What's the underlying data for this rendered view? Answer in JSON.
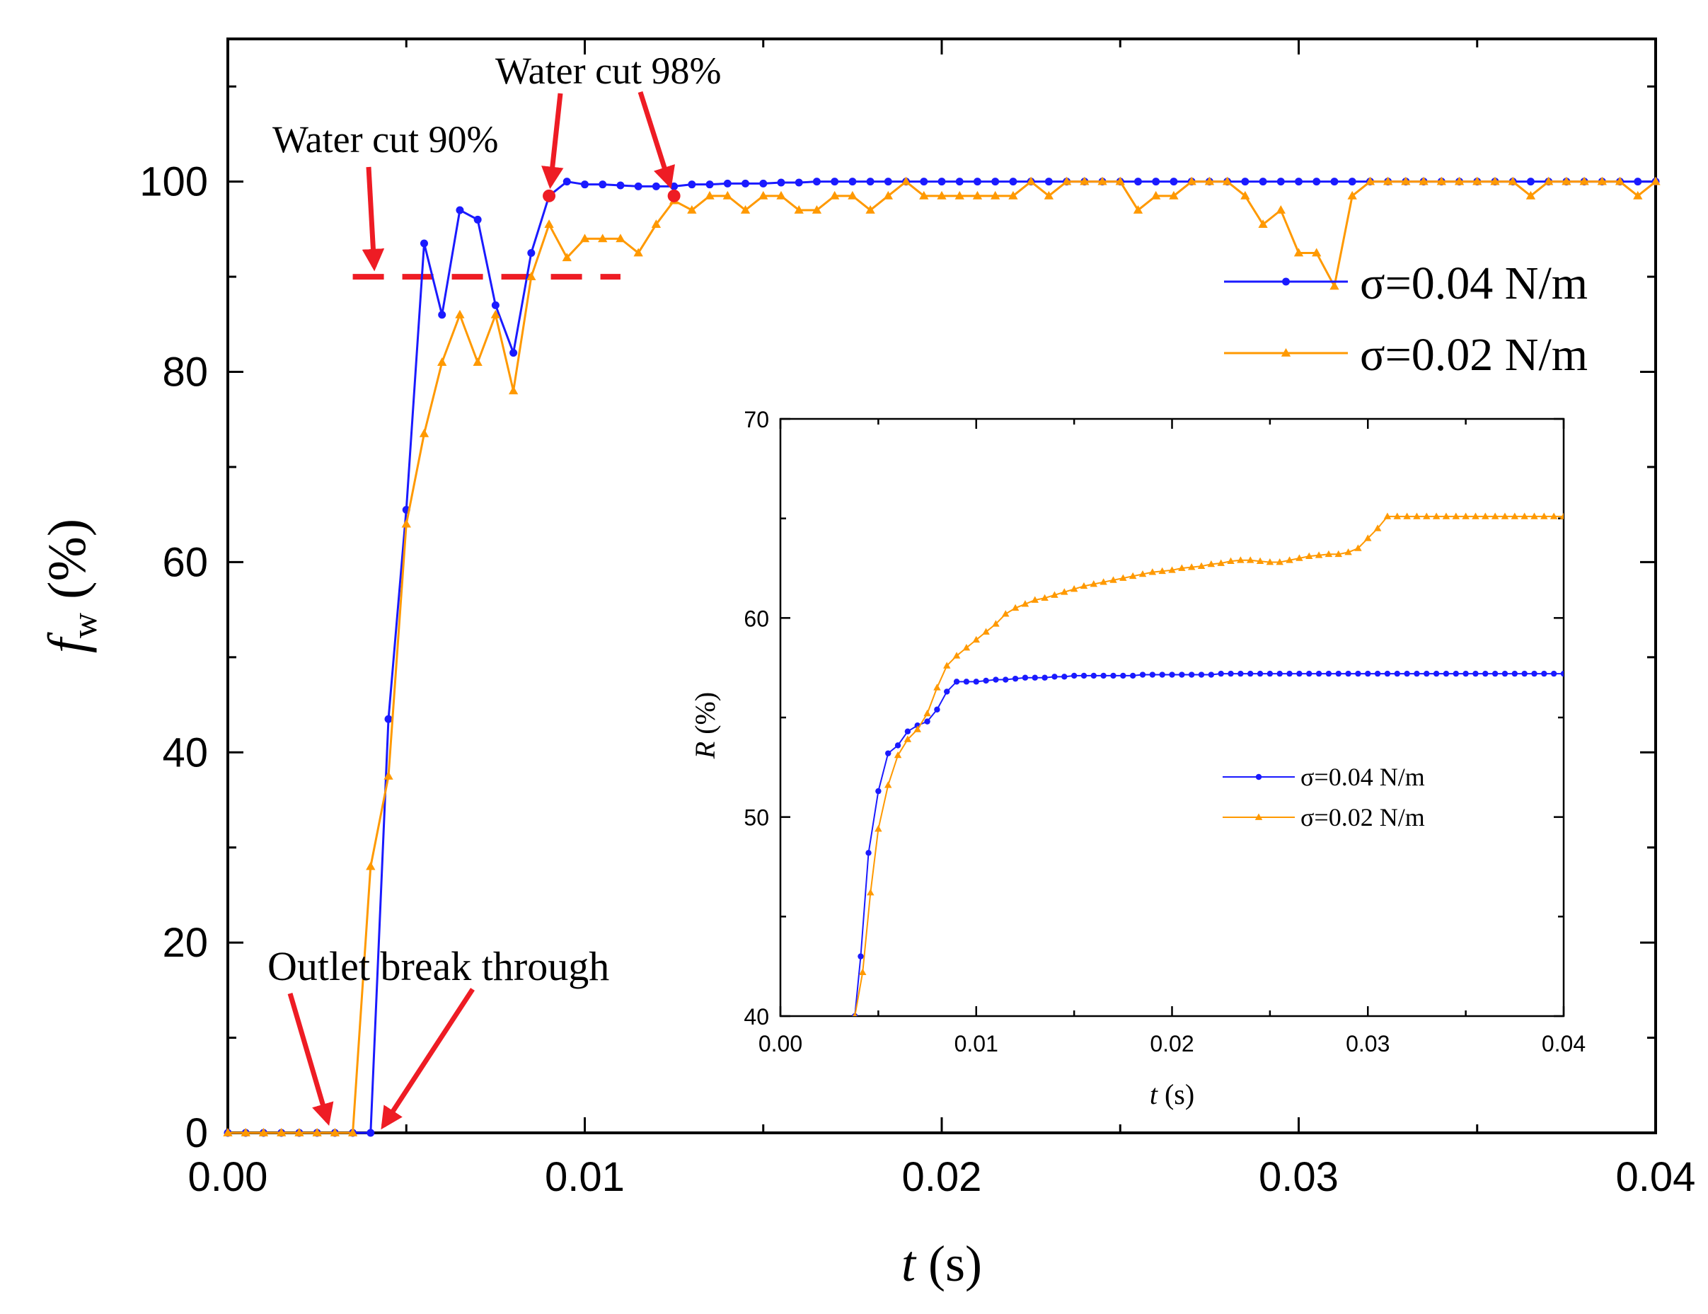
{
  "chart_data": [
    {
      "type": "line",
      "ylabel_symbol": "f",
      "ylabel_subscript": "w",
      "ylabel_unit": "(%)",
      "xlabel_symbol": "t",
      "xlabel_unit": "(s)",
      "xlim": [
        0,
        0.04
      ],
      "ylim": [
        0,
        115
      ],
      "x_ticks": [
        "0.00",
        "0.01",
        "0.02",
        "0.03",
        "0.04"
      ],
      "y_ticks": [
        "0",
        "20",
        "40",
        "60",
        "80",
        "100"
      ],
      "legend_position": "right",
      "series": [
        {
          "name": "σ=0.04 N/m",
          "color": "#1a1aff",
          "marker": "circle",
          "x": [
            0,
            0.0005,
            0.001,
            0.0015,
            0.002,
            0.0025,
            0.003,
            0.0035,
            0.004,
            0.0045,
            0.005,
            0.0055,
            0.006,
            0.0065,
            0.007,
            0.0075,
            0.008,
            0.0085,
            0.009,
            0.0095,
            0.01,
            0.0105,
            0.011,
            0.0115,
            0.012,
            0.0125,
            0.013,
            0.0135,
            0.014,
            0.0145,
            0.015,
            0.0155,
            0.016,
            0.0165,
            0.017,
            0.0175,
            0.018,
            0.0185,
            0.019,
            0.0195,
            0.02,
            0.0205,
            0.021,
            0.0215,
            0.022,
            0.0225,
            0.023,
            0.0235,
            0.024,
            0.0245,
            0.025,
            0.0255,
            0.026,
            0.0265,
            0.027,
            0.0275,
            0.028,
            0.0285,
            0.029,
            0.0295,
            0.03,
            0.0305,
            0.031,
            0.0315,
            0.032,
            0.0325,
            0.033,
            0.0335,
            0.034,
            0.0345,
            0.035,
            0.0355,
            0.036,
            0.0365,
            0.037,
            0.0375,
            0.038,
            0.0385,
            0.039,
            0.0395,
            0.04
          ],
          "y": [
            0,
            0,
            0,
            0,
            0,
            0,
            0,
            0,
            0,
            43.5,
            65.5,
            93.5,
            86,
            97,
            96,
            87,
            82,
            92.5,
            98.5,
            100,
            99.7,
            99.7,
            99.6,
            99.5,
            99.5,
            99.5,
            99.7,
            99.7,
            99.8,
            99.8,
            99.8,
            99.9,
            99.9,
            100,
            100,
            100,
            100,
            100,
            100,
            100,
            100,
            100,
            100,
            100,
            100,
            100,
            100,
            100,
            100,
            100,
            100,
            100,
            100,
            100,
            100,
            100,
            100,
            100,
            100,
            100,
            100,
            100,
            100,
            100,
            100,
            100,
            100,
            100,
            100,
            100,
            100,
            100,
            100,
            100,
            100,
            100,
            100,
            100,
            100,
            100,
            100
          ]
        },
        {
          "name": "σ=0.02 N/m",
          "color": "#ff9900",
          "marker": "triangle",
          "x": [
            0,
            0.0005,
            0.001,
            0.0015,
            0.002,
            0.0025,
            0.003,
            0.0035,
            0.004,
            0.0045,
            0.005,
            0.0055,
            0.006,
            0.0065,
            0.007,
            0.0075,
            0.008,
            0.0085,
            0.009,
            0.0095,
            0.01,
            0.0105,
            0.011,
            0.0115,
            0.012,
            0.0125,
            0.013,
            0.0135,
            0.014,
            0.0145,
            0.015,
            0.0155,
            0.016,
            0.0165,
            0.017,
            0.0175,
            0.018,
            0.0185,
            0.019,
            0.0195,
            0.02,
            0.0205,
            0.021,
            0.0215,
            0.022,
            0.0225,
            0.023,
            0.0235,
            0.024,
            0.0245,
            0.025,
            0.0255,
            0.026,
            0.0265,
            0.027,
            0.0275,
            0.028,
            0.0285,
            0.029,
            0.0295,
            0.03,
            0.0305,
            0.031,
            0.0315,
            0.032,
            0.0325,
            0.033,
            0.0335,
            0.034,
            0.0345,
            0.035,
            0.0355,
            0.036,
            0.0365,
            0.037,
            0.0375,
            0.038,
            0.0385,
            0.039,
            0.0395,
            0.04
          ],
          "y": [
            0,
            0,
            0,
            0,
            0,
            0,
            0,
            0,
            28,
            37.5,
            64,
            73.5,
            81,
            86,
            81,
            86,
            78,
            90,
            95.5,
            92,
            94,
            94,
            94,
            92.5,
            95.5,
            98,
            97,
            98.5,
            98.5,
            97,
            98.5,
            98.5,
            97,
            97,
            98.5,
            98.5,
            97,
            98.5,
            100,
            98.5,
            98.5,
            98.5,
            98.5,
            98.5,
            98.5,
            100,
            98.5,
            100,
            100,
            100,
            100,
            97,
            98.5,
            98.5,
            100,
            100,
            100,
            98.5,
            95.5,
            97,
            92.5,
            92.5,
            89,
            98.5,
            100,
            100,
            100,
            100,
            100,
            100,
            100,
            100,
            100,
            98.5,
            100,
            100,
            100,
            100,
            100,
            98.5,
            100
          ]
        }
      ],
      "reference_line": {
        "y": 90,
        "x_range": [
          0.0035,
          0.011
        ],
        "style": "dashed",
        "color": "#ee1c24"
      },
      "annotations": [
        {
          "text": "Water cut 90%",
          "arrow_target": [
            0.0041,
            90
          ]
        },
        {
          "text": "Water cut 98%",
          "arrow_targets": [
            [
              0.009,
              98.5
            ],
            [
              0.0125,
              98.5
            ]
          ]
        },
        {
          "text": "Outlet break through",
          "arrow_targets": [
            [
              0.003,
              0
            ],
            [
              0.0042,
              0
            ]
          ]
        }
      ],
      "highlight_points": [
        [
          0.009,
          98.5
        ],
        [
          0.0125,
          98.5
        ]
      ],
      "annotation_color": "#ee1c24"
    },
    {
      "type": "line",
      "role": "inset",
      "ylabel_symbol": "R",
      "ylabel_unit": "(%)",
      "xlabel_symbol": "t",
      "xlabel_unit": "(s)",
      "xlim": [
        0,
        0.04
      ],
      "ylim": [
        40,
        70
      ],
      "x_ticks": [
        "0.00",
        "0.01",
        "0.02",
        "0.03",
        "0.04"
      ],
      "y_ticks": [
        "40",
        "50",
        "60",
        "70"
      ],
      "legend_position": "center",
      "series": [
        {
          "name": "σ=0.04 N/m",
          "color": "#1a1aff",
          "marker": "circle",
          "x": [
            0.0038,
            0.0041,
            0.0045,
            0.005,
            0.0055,
            0.006,
            0.0065,
            0.007,
            0.0075,
            0.008,
            0.0085,
            0.009,
            0.0095,
            0.01,
            0.0105,
            0.011,
            0.0115,
            0.012,
            0.0125,
            0.013,
            0.0135,
            0.014,
            0.0145,
            0.015,
            0.0155,
            0.016,
            0.0165,
            0.017,
            0.0175,
            0.018,
            0.0185,
            0.019,
            0.0195,
            0.02,
            0.0205,
            0.021,
            0.0215,
            0.022,
            0.0225,
            0.023,
            0.0235,
            0.024,
            0.0245,
            0.025,
            0.0255,
            0.026,
            0.0265,
            0.027,
            0.0275,
            0.028,
            0.0285,
            0.029,
            0.0295,
            0.03,
            0.0305,
            0.031,
            0.0315,
            0.032,
            0.0325,
            0.033,
            0.0335,
            0.034,
            0.0345,
            0.035,
            0.0355,
            0.036,
            0.0365,
            0.037,
            0.0375,
            0.038,
            0.0385,
            0.039,
            0.0395,
            0.04
          ],
          "y": [
            40,
            43,
            48.2,
            51.3,
            53.2,
            53.6,
            54.3,
            54.6,
            54.8,
            55.4,
            56.3,
            56.8,
            56.8,
            56.8,
            56.85,
            56.9,
            56.9,
            56.95,
            57,
            57,
            57,
            57.05,
            57.05,
            57.1,
            57.1,
            57.1,
            57.1,
            57.1,
            57.1,
            57.1,
            57.15,
            57.15,
            57.15,
            57.15,
            57.15,
            57.15,
            57.15,
            57.15,
            57.2,
            57.2,
            57.2,
            57.2,
            57.2,
            57.2,
            57.2,
            57.2,
            57.2,
            57.2,
            57.2,
            57.2,
            57.2,
            57.2,
            57.2,
            57.2,
            57.2,
            57.2,
            57.2,
            57.2,
            57.2,
            57.2,
            57.2,
            57.2,
            57.2,
            57.2,
            57.2,
            57.2,
            57.2,
            57.2,
            57.2,
            57.2,
            57.2,
            57.2,
            57.2,
            57.2
          ]
        },
        {
          "name": "σ=0.02 N/m",
          "color": "#ff9900",
          "marker": "triangle",
          "x": [
            0.0038,
            0.0042,
            0.0046,
            0.005,
            0.0055,
            0.006,
            0.0065,
            0.007,
            0.0075,
            0.008,
            0.0085,
            0.009,
            0.0095,
            0.01,
            0.0105,
            0.011,
            0.0115,
            0.012,
            0.0125,
            0.013,
            0.0135,
            0.014,
            0.0145,
            0.015,
            0.0155,
            0.016,
            0.0165,
            0.017,
            0.0175,
            0.018,
            0.0185,
            0.019,
            0.0195,
            0.02,
            0.0205,
            0.021,
            0.0215,
            0.022,
            0.0225,
            0.023,
            0.0235,
            0.024,
            0.0245,
            0.025,
            0.0255,
            0.026,
            0.0265,
            0.027,
            0.0275,
            0.028,
            0.0285,
            0.029,
            0.0295,
            0.03,
            0.0305,
            0.031,
            0.0315,
            0.032,
            0.0325,
            0.033,
            0.0335,
            0.034,
            0.0345,
            0.035,
            0.0355,
            0.036,
            0.0365,
            0.037,
            0.0375,
            0.038,
            0.0385,
            0.039,
            0.0395,
            0.04
          ],
          "y": [
            40,
            42.2,
            46.2,
            49.4,
            51.6,
            53.1,
            53.9,
            54.4,
            55.2,
            56.5,
            57.6,
            58.1,
            58.5,
            58.9,
            59.3,
            59.7,
            60.2,
            60.5,
            60.7,
            60.9,
            61,
            61.15,
            61.3,
            61.45,
            61.6,
            61.7,
            61.8,
            61.9,
            62,
            62.1,
            62.2,
            62.3,
            62.35,
            62.4,
            62.5,
            62.55,
            62.6,
            62.7,
            62.75,
            62.85,
            62.9,
            62.9,
            62.85,
            62.8,
            62.8,
            62.9,
            63,
            63.1,
            63.15,
            63.2,
            63.2,
            63.3,
            63.5,
            64,
            64.5,
            65.1,
            65.1,
            65.1,
            65.1,
            65.1,
            65.1,
            65.1,
            65.1,
            65.1,
            65.1,
            65.1,
            65.1,
            65.1,
            65.1,
            65.1,
            65.1,
            65.1,
            65.1,
            65.1
          ]
        }
      ]
    }
  ]
}
